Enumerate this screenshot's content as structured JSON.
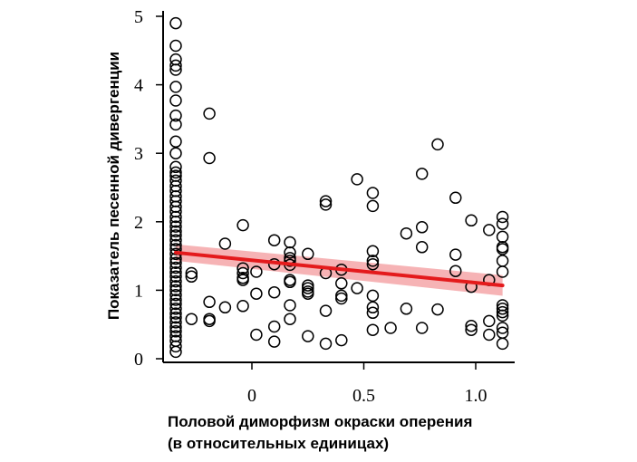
{
  "chart_data": {
    "type": "scatter",
    "title": "",
    "xlabel_lines": [
      "Половой диморфизм окраски оперения",
      "(в относительных единицах)"
    ],
    "ylabel": "Показатель песенной дивергенции",
    "xlim": [
      -0.4,
      1.15
    ],
    "ylim": [
      0,
      5
    ],
    "xticks": [
      0,
      0.5,
      1.0
    ],
    "xtick_labels": [
      "0",
      "0.5",
      "1.0"
    ],
    "yticks": [
      0,
      1,
      2,
      3,
      4,
      5
    ],
    "ytick_labels": [
      "0",
      "1",
      "2",
      "3",
      "4",
      "5"
    ],
    "grid": false,
    "legend": "none",
    "colors": {
      "points": "#000000",
      "trend_line": "#e41a1c",
      "confidence_band": "#f4a6a8"
    },
    "trend": {
      "x": [
        -0.34,
        1.12
      ],
      "y": [
        1.55,
        1.07
      ],
      "band_lower": [
        1.43,
        0.92
      ],
      "band_upper": [
        1.67,
        1.22
      ]
    },
    "points": [
      [
        -0.34,
        4.9
      ],
      [
        -0.34,
        4.57
      ],
      [
        -0.34,
        4.37
      ],
      [
        -0.34,
        4.28
      ],
      [
        -0.34,
        4.22
      ],
      [
        -0.34,
        3.97
      ],
      [
        -0.34,
        3.77
      ],
      [
        -0.34,
        3.55
      ],
      [
        -0.34,
        3.42
      ],
      [
        -0.34,
        3.17
      ],
      [
        -0.34,
        3.0
      ],
      [
        -0.34,
        2.8
      ],
      [
        -0.34,
        2.72
      ],
      [
        -0.34,
        2.67
      ],
      [
        -0.34,
        2.6
      ],
      [
        -0.34,
        2.52
      ],
      [
        -0.34,
        2.45
      ],
      [
        -0.34,
        2.37
      ],
      [
        -0.34,
        2.3
      ],
      [
        -0.34,
        2.22
      ],
      [
        -0.34,
        2.15
      ],
      [
        -0.34,
        2.07
      ],
      [
        -0.34,
        2.0
      ],
      [
        -0.34,
        1.93
      ],
      [
        -0.34,
        1.86
      ],
      [
        -0.34,
        1.8
      ],
      [
        -0.34,
        1.73
      ],
      [
        -0.34,
        1.66
      ],
      [
        -0.34,
        1.6
      ],
      [
        -0.34,
        1.53
      ],
      [
        -0.34,
        1.46
      ],
      [
        -0.34,
        1.4
      ],
      [
        -0.34,
        1.33
      ],
      [
        -0.34,
        1.26
      ],
      [
        -0.34,
        1.2
      ],
      [
        -0.34,
        1.13
      ],
      [
        -0.34,
        1.06
      ],
      [
        -0.34,
        1.0
      ],
      [
        -0.34,
        0.93
      ],
      [
        -0.34,
        0.86
      ],
      [
        -0.34,
        0.8
      ],
      [
        -0.34,
        0.73
      ],
      [
        -0.34,
        0.66
      ],
      [
        -0.34,
        0.6
      ],
      [
        -0.34,
        0.53
      ],
      [
        -0.34,
        0.46
      ],
      [
        -0.34,
        0.4
      ],
      [
        -0.34,
        0.33
      ],
      [
        -0.34,
        0.26
      ],
      [
        -0.34,
        0.18
      ],
      [
        -0.34,
        0.1
      ],
      [
        -0.27,
        1.25
      ],
      [
        -0.27,
        1.2
      ],
      [
        -0.27,
        0.58
      ],
      [
        -0.19,
        3.58
      ],
      [
        -0.19,
        2.93
      ],
      [
        -0.19,
        0.83
      ],
      [
        -0.19,
        0.58
      ],
      [
        -0.19,
        0.55
      ],
      [
        -0.12,
        1.68
      ],
      [
        -0.12,
        0.75
      ],
      [
        -0.04,
        1.95
      ],
      [
        -0.04,
        1.32
      ],
      [
        -0.04,
        1.25
      ],
      [
        -0.04,
        1.18
      ],
      [
        -0.04,
        1.15
      ],
      [
        -0.04,
        0.77
      ],
      [
        0.02,
        1.27
      ],
      [
        0.02,
        0.95
      ],
      [
        0.02,
        0.35
      ],
      [
        0.1,
        1.73
      ],
      [
        0.1,
        1.38
      ],
      [
        0.1,
        0.97
      ],
      [
        0.1,
        0.47
      ],
      [
        0.1,
        0.25
      ],
      [
        0.17,
        1.7
      ],
      [
        0.17,
        1.55
      ],
      [
        0.17,
        1.47
      ],
      [
        0.17,
        1.43
      ],
      [
        0.17,
        1.37
      ],
      [
        0.17,
        1.15
      ],
      [
        0.17,
        1.12
      ],
      [
        0.17,
        0.78
      ],
      [
        0.17,
        0.58
      ],
      [
        0.25,
        1.53
      ],
      [
        0.25,
        1.07
      ],
      [
        0.25,
        1.03
      ],
      [
        0.25,
        0.98
      ],
      [
        0.25,
        0.95
      ],
      [
        0.25,
        0.33
      ],
      [
        0.33,
        2.3
      ],
      [
        0.33,
        2.25
      ],
      [
        0.33,
        1.25
      ],
      [
        0.33,
        0.7
      ],
      [
        0.33,
        0.22
      ],
      [
        0.4,
        1.3
      ],
      [
        0.4,
        1.1
      ],
      [
        0.4,
        0.92
      ],
      [
        0.4,
        0.88
      ],
      [
        0.4,
        0.27
      ],
      [
        0.47,
        2.62
      ],
      [
        0.47,
        1.03
      ],
      [
        0.54,
        2.42
      ],
      [
        0.54,
        2.23
      ],
      [
        0.54,
        1.57
      ],
      [
        0.54,
        1.43
      ],
      [
        0.54,
        1.38
      ],
      [
        0.54,
        0.92
      ],
      [
        0.54,
        0.75
      ],
      [
        0.54,
        0.67
      ],
      [
        0.54,
        0.42
      ],
      [
        0.62,
        0.45
      ],
      [
        0.69,
        1.83
      ],
      [
        0.69,
        0.73
      ],
      [
        0.76,
        2.7
      ],
      [
        0.76,
        1.92
      ],
      [
        0.76,
        1.63
      ],
      [
        0.76,
        0.45
      ],
      [
        0.83,
        3.13
      ],
      [
        0.83,
        0.72
      ],
      [
        0.91,
        2.35
      ],
      [
        0.91,
        1.52
      ],
      [
        0.91,
        1.28
      ],
      [
        0.98,
        2.02
      ],
      [
        0.98,
        1.05
      ],
      [
        0.98,
        0.48
      ],
      [
        0.98,
        0.42
      ],
      [
        1.06,
        1.88
      ],
      [
        1.06,
        1.15
      ],
      [
        1.06,
        0.55
      ],
      [
        1.06,
        0.35
      ],
      [
        1.12,
        2.07
      ],
      [
        1.12,
        1.97
      ],
      [
        1.12,
        1.78
      ],
      [
        1.12,
        1.63
      ],
      [
        1.12,
        1.6
      ],
      [
        1.12,
        1.43
      ],
      [
        1.12,
        1.27
      ],
      [
        1.12,
        0.78
      ],
      [
        1.12,
        0.73
      ],
      [
        1.12,
        0.68
      ],
      [
        1.12,
        0.63
      ],
      [
        1.12,
        0.45
      ],
      [
        1.12,
        0.38
      ],
      [
        1.12,
        0.22
      ]
    ]
  }
}
